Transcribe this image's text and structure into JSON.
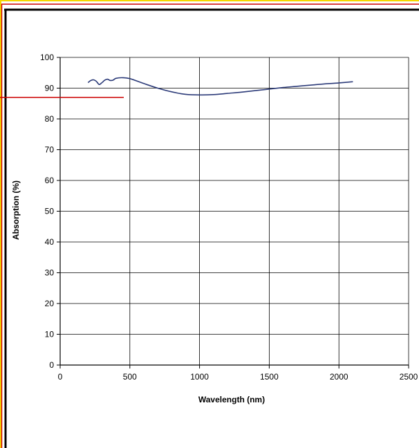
{
  "chart_data": {
    "type": "line",
    "title": "",
    "xlabel": "Wavelength (nm)",
    "ylabel": "Absorption (%)",
    "xlim": [
      0,
      2500
    ],
    "ylim": [
      0,
      100
    ],
    "xticks": [
      "0",
      "500",
      "1000",
      "1500",
      "2000",
      "2500"
    ],
    "yticks": [
      "0",
      "10",
      "20",
      "30",
      "40",
      "50",
      "60",
      "70",
      "80",
      "90",
      "100"
    ],
    "grid": true,
    "legend": "none",
    "series": [
      {
        "color": "#2b3a78",
        "points": [
          [
            200,
            91.8
          ],
          [
            220,
            92.5
          ],
          [
            240,
            92.7
          ],
          [
            260,
            92.2
          ],
          [
            280,
            91.2
          ],
          [
            300,
            91.8
          ],
          [
            320,
            92.6
          ],
          [
            340,
            92.9
          ],
          [
            360,
            92.5
          ],
          [
            380,
            92.6
          ],
          [
            400,
            93.2
          ],
          [
            450,
            93.4
          ],
          [
            500,
            93.1
          ],
          [
            600,
            91.5
          ],
          [
            700,
            90.0
          ],
          [
            800,
            88.8
          ],
          [
            900,
            88.0
          ],
          [
            1000,
            87.8
          ],
          [
            1100,
            87.9
          ],
          [
            1200,
            88.3
          ],
          [
            1300,
            88.7
          ],
          [
            1400,
            89.2
          ],
          [
            1500,
            89.7
          ],
          [
            1600,
            90.2
          ],
          [
            1700,
            90.6
          ],
          [
            1800,
            91.0
          ],
          [
            1900,
            91.4
          ],
          [
            2000,
            91.7
          ],
          [
            2100,
            92.1
          ]
        ]
      }
    ]
  },
  "colors": {
    "outer_border": "#f5d800",
    "inner_border": "#cc0000",
    "frame_line": "#000000",
    "annotation_line": "#cc0000",
    "grid": "#000000"
  },
  "annotation": {
    "type": "pointer-line",
    "y_value": 87
  }
}
